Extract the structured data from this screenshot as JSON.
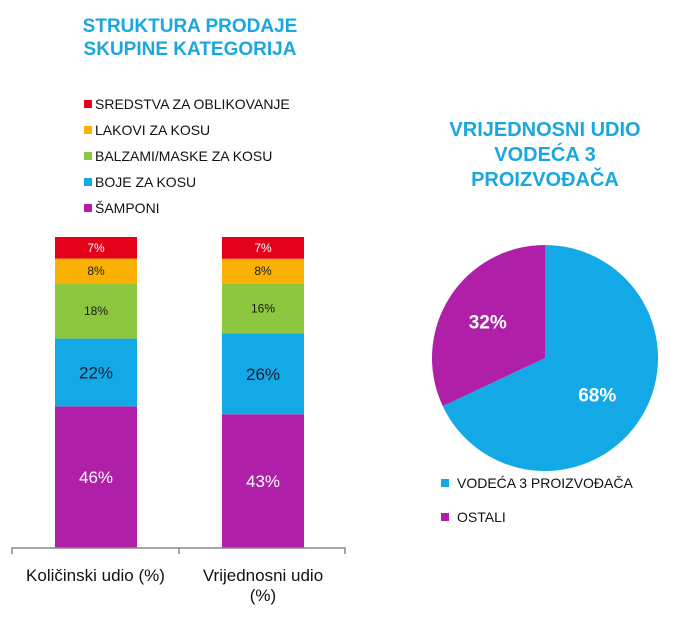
{
  "chart_data": [
    {
      "type": "bar",
      "stacked": true,
      "title": "STRUKTURA PRODAJE SKUPINE KATEGORIJA",
      "title_lines": [
        "STRUKTURA PRODAJE",
        "SKUPINE KATEGORIJA"
      ],
      "categories": [
        "Količinski udio (%)",
        "Vrijednosni udio (%)"
      ],
      "series": [
        {
          "name": "ŠAMPONI",
          "color": "#b01fa8",
          "values": [
            46,
            43
          ],
          "label_color": "#ffffff"
        },
        {
          "name": "BOJE ZA KOSU",
          "color": "#12a9e6",
          "values": [
            22,
            26
          ],
          "label_color": "#1a1a2e"
        },
        {
          "name": "BALZAMI/MASKE ZA KOSU",
          "color": "#8dc63f",
          "values": [
            18,
            16
          ],
          "label_color": "#1a1a1a"
        },
        {
          "name": "LAKOVI ZA KOSU",
          "color": "#fbb103",
          "values": [
            8,
            8
          ],
          "label_color": "#1a1a1a"
        },
        {
          "name": "SREDSTVA ZA OBLIKOVANJE",
          "color": "#e2001a",
          "values": [
            7,
            7
          ],
          "label_color": "#ffffff"
        }
      ],
      "data_labels": [
        [
          "46%",
          "22%",
          "18%",
          "8%",
          "7%"
        ],
        [
          "43%",
          "26%",
          "16%",
          "8%",
          "7%"
        ]
      ],
      "legend_order": [
        "SREDSTVA ZA OBLIKOVANJE",
        "LAKOVI ZA KOSU",
        "BALZAMI/MASKE ZA KOSU",
        "BOJE ZA KOSU",
        "ŠAMPONI"
      ],
      "legend_placement": "top",
      "grid": false
    },
    {
      "type": "pie",
      "title": "VRIJEDNOSNI UDIO VODEĆA 3 PROIZVOĐAČA",
      "title_lines": [
        "VRIJEDNOSNI UDIO",
        "VODEĆA 3",
        "PROIZVOĐAČA"
      ],
      "slices": [
        {
          "name": "VODEĆA 3 PROIZVOĐAČA",
          "value": 68,
          "label": "68%",
          "color": "#12a9e6"
        },
        {
          "name": "OSTALI",
          "value": 32,
          "label": "32%",
          "color": "#b01fa8"
        }
      ],
      "legend_placement": "bottom"
    }
  ]
}
